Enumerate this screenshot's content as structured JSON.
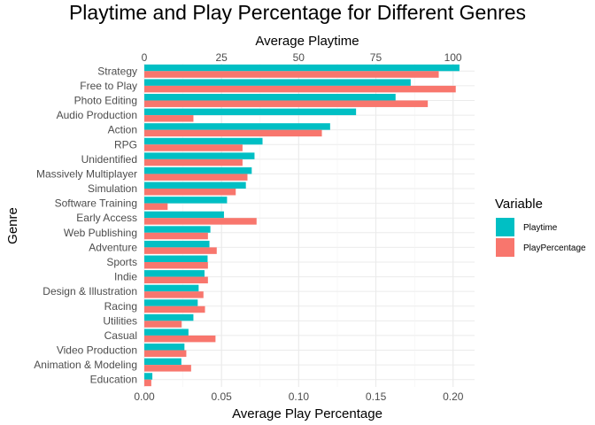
{
  "chart_data": {
    "type": "bar",
    "orientation": "horizontal",
    "title": "Playtime and Play Percentage for Different Genres",
    "ylabel": "Genre",
    "top_axis": {
      "label": "Average Playtime",
      "lim": [
        0,
        107
      ],
      "ticks": [
        "0",
        "25",
        "50",
        "75",
        "100"
      ],
      "tick_values": [
        0,
        25,
        50,
        75,
        100
      ]
    },
    "bottom_axis": {
      "label": "Average Play Percentage",
      "lim": [
        0,
        0.2139
      ],
      "ticks": [
        "0.00",
        "0.05",
        "0.10",
        "0.15",
        "0.20"
      ],
      "tick_values": [
        0,
        0.05,
        0.1,
        0.15,
        0.2
      ]
    },
    "categories": [
      "Strategy",
      "Free to Play",
      "Photo Editing",
      "Audio Production",
      "Action",
      "RPG",
      "Unidentified",
      "Massively Multiplayer",
      "Simulation",
      "Software Training",
      "Early Access",
      "Web Publishing",
      "Adventure",
      "Sports",
      "Indie",
      "Design & Illustration",
      "Racing",
      "Utilities",
      "Casual",
      "Video Production",
      "Animation & Modeling",
      "Education"
    ],
    "series": [
      {
        "name": "Playtime",
        "axis": "top",
        "color": "#00BFC4",
        "values": [
          102.1,
          86.3,
          81.4,
          68.6,
          60.2,
          38.3,
          35.7,
          34.8,
          32.9,
          26.8,
          25.8,
          21.4,
          21.1,
          20.5,
          19.5,
          17.6,
          17.3,
          15.9,
          14.3,
          13.0,
          12.0,
          2.6
        ]
      },
      {
        "name": "PlayPercentage",
        "axis": "bottom",
        "color": "#F8766D",
        "values": [
          0.1907,
          0.2017,
          0.1836,
          0.0318,
          0.115,
          0.0636,
          0.0636,
          0.0668,
          0.0592,
          0.0151,
          0.0727,
          0.0412,
          0.0469,
          0.0412,
          0.0412,
          0.0383,
          0.0393,
          0.0242,
          0.0461,
          0.0272,
          0.0303,
          0.0045
        ]
      }
    ],
    "legend": {
      "title": "Variable",
      "position": "right",
      "entries": [
        "Playtime",
        "PlayPercentage"
      ]
    },
    "grid": true
  }
}
